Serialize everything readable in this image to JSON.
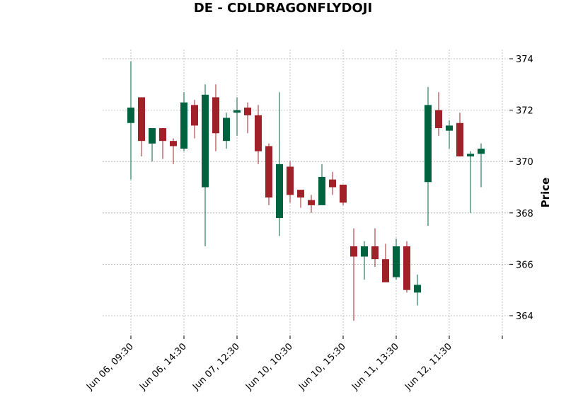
{
  "chart_data": {
    "type": "candlestick",
    "title": "DE - CDLDRAGONFLYDOJI",
    "ylabel": "Price",
    "ylim": [
      363.3,
      374.4
    ],
    "y_ticks": [
      364,
      366,
      368,
      370,
      372,
      374
    ],
    "x_tick_labels": [
      "Jun 06, 09:30",
      "Jun 06, 14:30",
      "Jun 07, 12:30",
      "Jun 10, 10:30",
      "Jun 10, 15:30",
      "Jun 11, 13:30",
      "Jun 12, 11:30",
      ""
    ],
    "x_tick_every": 5,
    "grid": true,
    "colors": {
      "up": "#006340",
      "down": "#A02128"
    },
    "candles": [
      {
        "open": 371.5,
        "high": 373.9,
        "low": 369.3,
        "close": 372.1
      },
      {
        "open": 372.5,
        "high": 372.5,
        "low": 370.2,
        "close": 370.8
      },
      {
        "open": 370.7,
        "high": 371.3,
        "low": 370.0,
        "close": 371.3
      },
      {
        "open": 371.3,
        "high": 371.3,
        "low": 370.1,
        "close": 370.8
      },
      {
        "open": 370.8,
        "high": 370.9,
        "low": 369.9,
        "close": 370.6
      },
      {
        "open": 370.5,
        "high": 372.7,
        "low": 370.4,
        "close": 372.3
      },
      {
        "open": 372.2,
        "high": 372.4,
        "low": 370.9,
        "close": 371.4
      },
      {
        "open": 369.0,
        "high": 373.0,
        "low": 366.7,
        "close": 372.6
      },
      {
        "open": 372.5,
        "high": 373.0,
        "low": 370.4,
        "close": 371.1
      },
      {
        "open": 370.8,
        "high": 371.9,
        "low": 370.5,
        "close": 371.7
      },
      {
        "open": 371.9,
        "high": 372.5,
        "low": 371.0,
        "close": 372.0
      },
      {
        "open": 372.1,
        "high": 372.3,
        "low": 371.1,
        "close": 371.8
      },
      {
        "open": 371.8,
        "high": 372.2,
        "low": 369.9,
        "close": 370.4
      },
      {
        "open": 370.6,
        "high": 370.7,
        "low": 368.3,
        "close": 368.6
      },
      {
        "open": 367.8,
        "high": 372.7,
        "low": 367.1,
        "close": 369.9
      },
      {
        "open": 369.8,
        "high": 370.0,
        "low": 368.4,
        "close": 368.7
      },
      {
        "open": 368.9,
        "high": 368.9,
        "low": 368.2,
        "close": 368.6
      },
      {
        "open": 368.5,
        "high": 368.7,
        "low": 368.0,
        "close": 368.3
      },
      {
        "open": 368.3,
        "high": 369.9,
        "low": 368.3,
        "close": 369.4
      },
      {
        "open": 369.3,
        "high": 369.6,
        "low": 368.7,
        "close": 369.0
      },
      {
        "open": 369.1,
        "high": 369.1,
        "low": 368.3,
        "close": 368.4
      },
      {
        "open": 366.7,
        "high": 367.4,
        "low": 363.8,
        "close": 366.3
      },
      {
        "open": 366.3,
        "high": 366.9,
        "low": 365.4,
        "close": 366.7
      },
      {
        "open": 366.7,
        "high": 367.4,
        "low": 365.9,
        "close": 366.2
      },
      {
        "open": 366.2,
        "high": 366.8,
        "low": 365.3,
        "close": 365.3
      },
      {
        "open": 365.5,
        "high": 367.0,
        "low": 365.4,
        "close": 366.7
      },
      {
        "open": 366.7,
        "high": 366.9,
        "low": 364.9,
        "close": 365.0
      },
      {
        "open": 364.9,
        "high": 365.6,
        "low": 364.4,
        "close": 365.2
      },
      {
        "open": 369.2,
        "high": 372.9,
        "low": 367.5,
        "close": 372.2
      },
      {
        "open": 372.0,
        "high": 372.7,
        "low": 371.0,
        "close": 371.3
      },
      {
        "open": 371.2,
        "high": 371.6,
        "low": 370.5,
        "close": 371.4
      },
      {
        "open": 371.5,
        "high": 371.9,
        "low": 370.2,
        "close": 370.2
      },
      {
        "open": 370.2,
        "high": 370.4,
        "low": 368.0,
        "close": 370.3
      },
      {
        "open": 370.3,
        "high": 370.7,
        "low": 369.0,
        "close": 370.5
      }
    ]
  }
}
